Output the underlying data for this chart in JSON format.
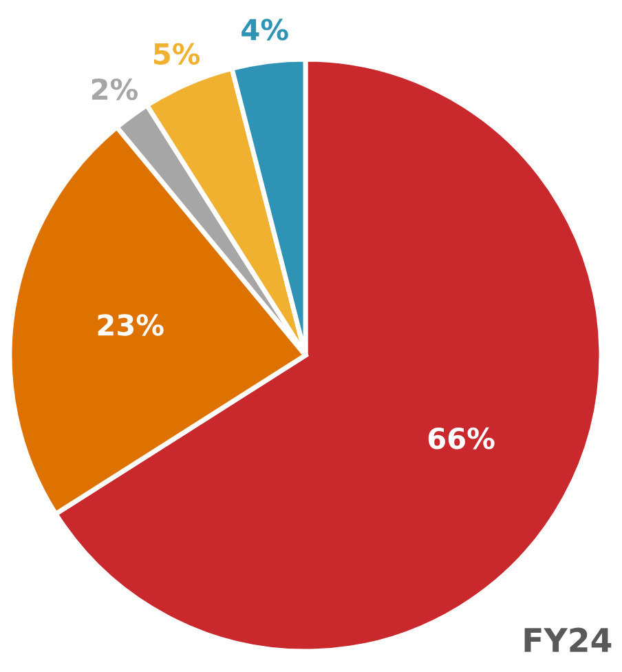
{
  "chart_data": {
    "type": "pie",
    "categories": [
      null,
      null,
      null,
      null,
      null
    ],
    "values": [
      66,
      23,
      2,
      5,
      4
    ],
    "colors": [
      "#c9282d",
      "#de7200",
      "#a6a6a6",
      "#f0b030",
      "#2e93b5"
    ],
    "value_labels": [
      "66%",
      "23%",
      "2%",
      "5%",
      "4%"
    ],
    "annotations": [
      "FY24"
    ]
  }
}
